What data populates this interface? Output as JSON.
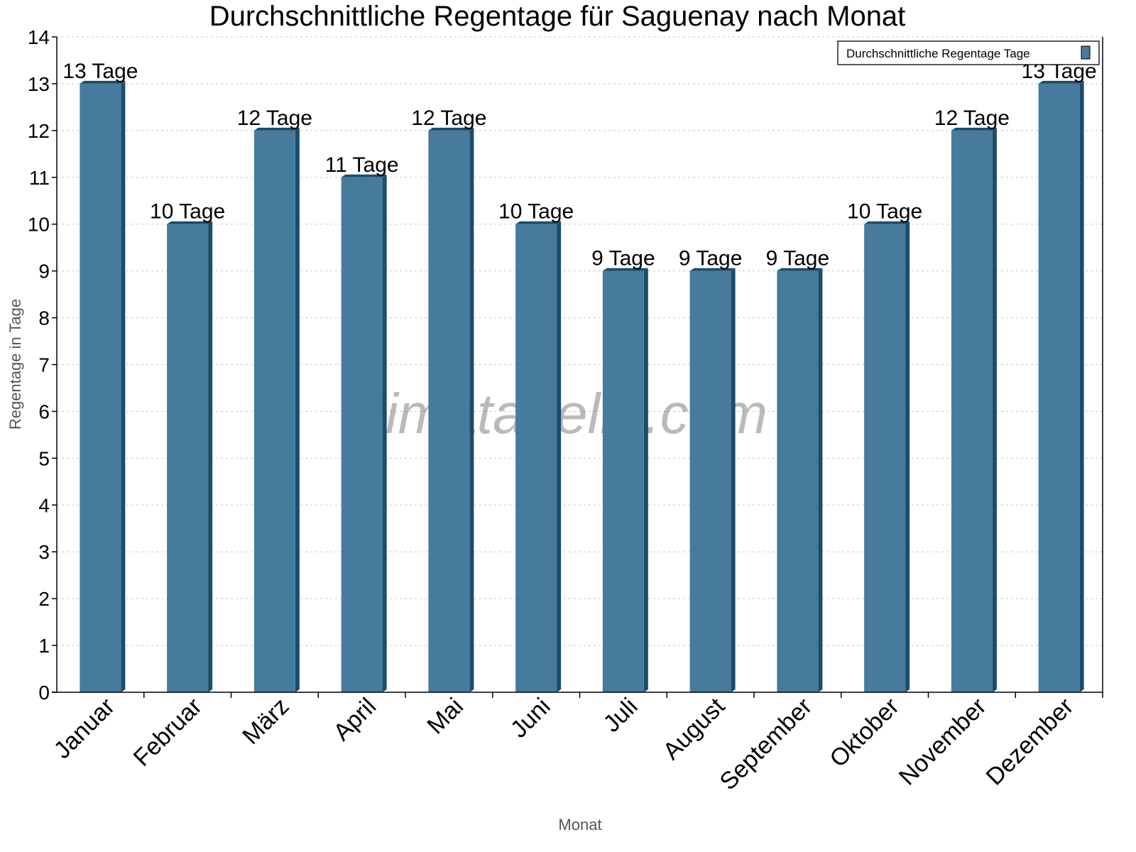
{
  "chart_data": {
    "type": "bar",
    "title": "Durchschnittliche Regentage für Saguenay nach Monat",
    "xlabel": "Monat",
    "ylabel": "Regentage in Tage",
    "ylim": [
      0,
      14
    ],
    "yticks": [
      0,
      1,
      2,
      3,
      4,
      5,
      6,
      7,
      8,
      9,
      10,
      11,
      12,
      13,
      14
    ],
    "grid": "horizontal dotted",
    "legend_position": "top-right",
    "categories": [
      "Januar",
      "Februar",
      "März",
      "April",
      "Mai",
      "Juni",
      "Juli",
      "August",
      "September",
      "Oktober",
      "November",
      "Dezember"
    ],
    "series": [
      {
        "name": "Durchschnittliche Regentage Tage",
        "values": [
          13,
          10,
          12,
          11,
          12,
          10,
          9,
          9,
          9,
          10,
          12,
          13
        ],
        "data_labels": [
          "13 Tage",
          "10 Tage",
          "12 Tage",
          "11 Tage",
          "12 Tage",
          "10 Tage",
          "9 Tage",
          "9 Tage",
          "9 Tage",
          "10 Tage",
          "12 Tage",
          "13 Tage"
        ],
        "color": "#467b9d",
        "side_color": "#1b4c6e"
      }
    ],
    "watermark": "klimatabelle.com"
  }
}
